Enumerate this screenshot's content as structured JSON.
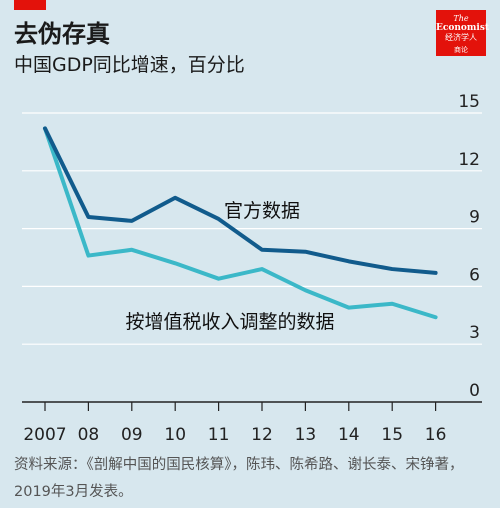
{
  "header": {
    "title": "去伪存真",
    "subtitle": "中国GDP同比增速，百分比"
  },
  "logo": {
    "line1": "The",
    "line2": "Economist",
    "line3": "经济学人",
    "line4": "商论"
  },
  "colors": {
    "background": "#d7e7ee",
    "official": "#115b8c",
    "adjusted": "#3bb8c8",
    "brand_red": "#e3120b"
  },
  "chart_data": {
    "type": "line",
    "x": [
      "2007",
      "08",
      "09",
      "10",
      "11",
      "12",
      "13",
      "14",
      "15",
      "16"
    ],
    "ylim": [
      0,
      15
    ],
    "yticks": [
      0,
      3,
      6,
      9,
      12,
      15
    ],
    "series": [
      {
        "name": "官方数据",
        "values": [
          14.2,
          9.6,
          9.4,
          10.6,
          9.5,
          7.9,
          7.8,
          7.3,
          6.9,
          6.7
        ]
      },
      {
        "name": "按增值税收入调整的数据",
        "values": [
          14.2,
          7.6,
          7.9,
          7.2,
          6.4,
          6.9,
          5.8,
          4.9,
          5.1,
          4.4
        ]
      }
    ]
  },
  "source": {
    "text": "资料来源：《剖解中国的国民核算》，陈玮、陈希路、谢长泰、宋铮著，2019年3月发表。"
  }
}
